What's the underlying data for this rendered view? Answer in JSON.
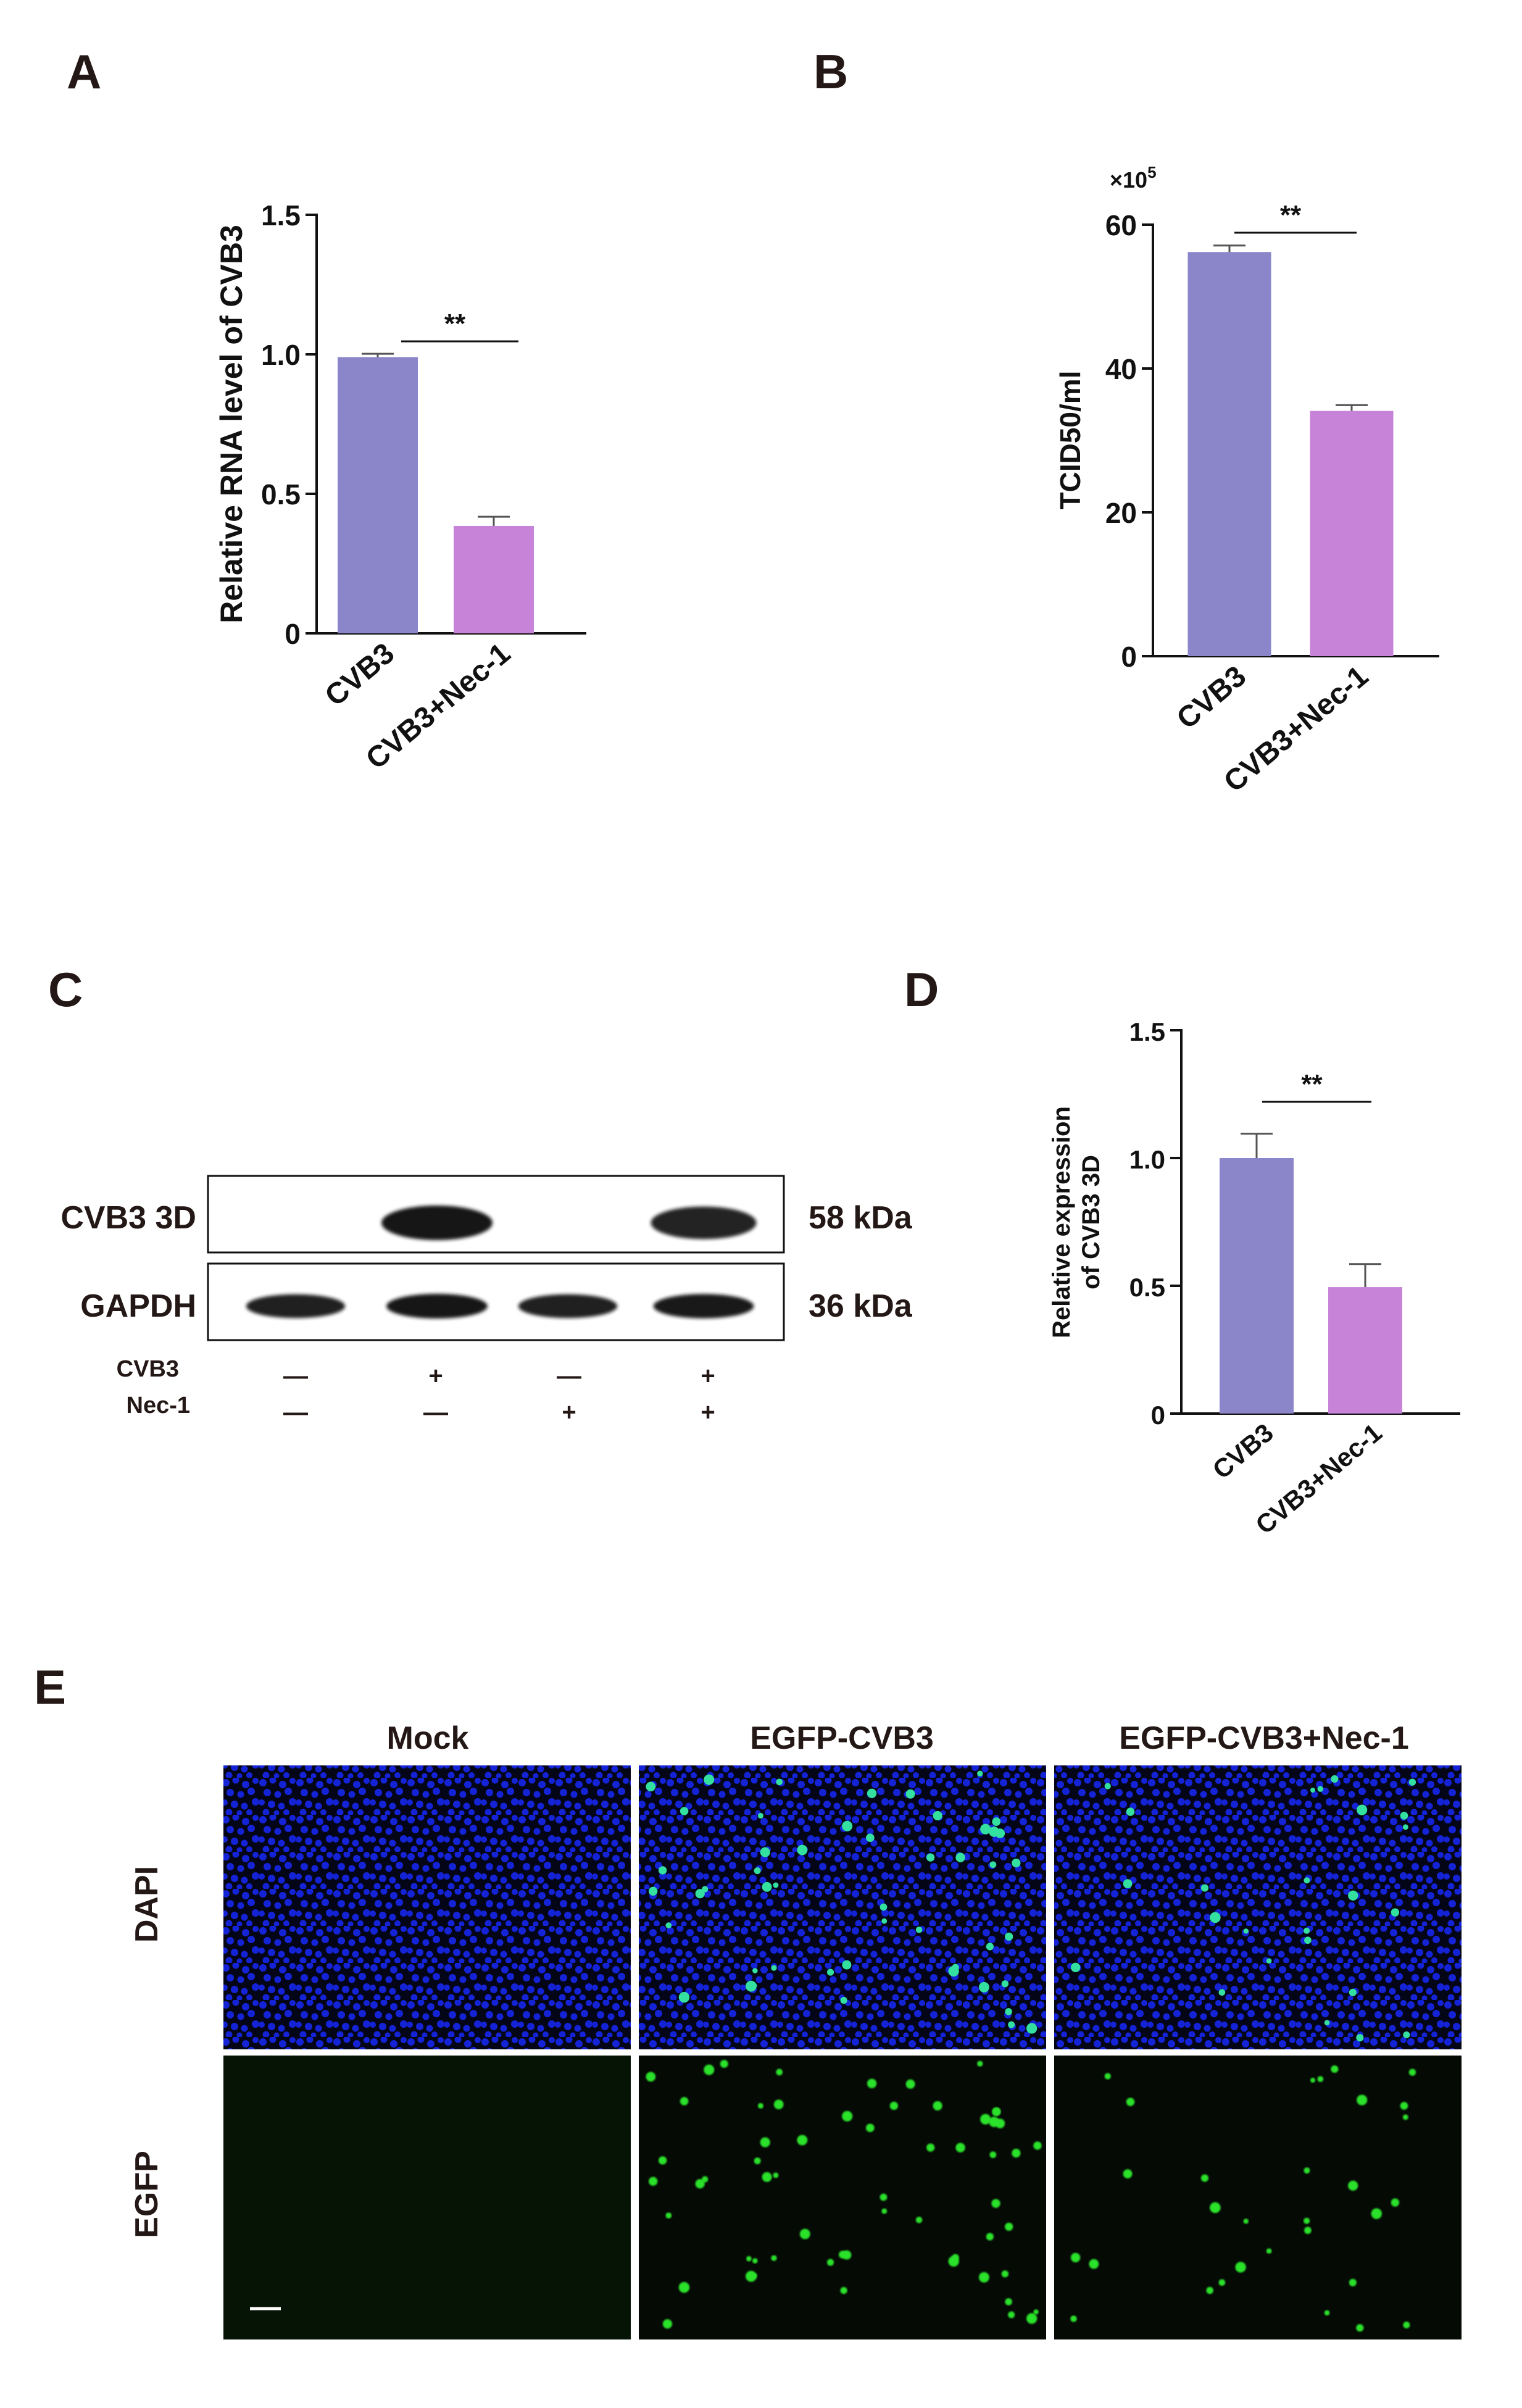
{
  "colors": {
    "bar_primary": "#8a86c9",
    "bar_secondary": "#c783d8",
    "axis": "#111111",
    "nuclei": "#1526e6",
    "egfp": "#2ce22c",
    "blot_band": "#151515"
  },
  "panels": {
    "a": "A",
    "b": "B",
    "c": "C",
    "d": "D",
    "e": "E"
  },
  "chart_data": [
    {
      "id": "A",
      "type": "bar",
      "categories": [
        "CVB3",
        "CVB3+Nec-1"
      ],
      "values": [
        0.99,
        0.385
      ],
      "errors": [
        0.012,
        0.033
      ],
      "ylabel": "Relative RNA level of CVB3",
      "ylim": [
        0,
        1.5
      ],
      "yticks": [
        0,
        0.5,
        1.0,
        1.5
      ],
      "ytick_labels": [
        "0",
        "0.5",
        "1.0",
        "1.5"
      ],
      "significance": "**"
    },
    {
      "id": "B",
      "type": "bar",
      "categories": [
        "CVB3",
        "CVB3+Nec-1"
      ],
      "values": [
        56.2,
        34.1
      ],
      "errors": [
        0.9,
        0.8
      ],
      "ylabel": "TCID50/ml",
      "multiplier_base": "×10",
      "multiplier_exp": "5",
      "ylim": [
        0,
        60
      ],
      "yticks": [
        0,
        20,
        40,
        60
      ],
      "ytick_labels": [
        "0",
        "20",
        "40",
        "60"
      ],
      "significance": "**"
    },
    {
      "id": "D",
      "type": "bar",
      "categories": [
        "CVB3",
        "CVB3+Nec-1"
      ],
      "values": [
        1.0,
        0.495
      ],
      "errors": [
        0.095,
        0.09
      ],
      "ylabel_line1": "Relative expression",
      "ylabel_line2": "of CVB3 3D",
      "ylim": [
        0,
        1.5
      ],
      "yticks": [
        0,
        0.5,
        1.0,
        1.5
      ],
      "ytick_labels": [
        "0",
        "0.5",
        "1.0",
        "1.5"
      ],
      "significance": "**"
    }
  ],
  "blot": {
    "rows": [
      {
        "label": "CVB3 3D",
        "size": "58 kDa",
        "band_intensity": [
          0,
          1,
          0,
          0.8
        ]
      },
      {
        "label": "GAPDH",
        "size": "36 kDa",
        "band_intensity": [
          0.85,
          1,
          0.85,
          0.95
        ]
      }
    ],
    "conditions": [
      {
        "label": "CVB3",
        "marks": [
          "—",
          "+",
          "—",
          "+"
        ]
      },
      {
        "label": "Nec-1",
        "marks": [
          "—",
          "—",
          "+",
          "+"
        ]
      }
    ]
  },
  "micro": {
    "columns": [
      {
        "label": "Mock",
        "egfp_level": 0
      },
      {
        "label": "EGFP-CVB3",
        "egfp_level": 1
      },
      {
        "label": "EGFP-CVB3+Nec-1",
        "egfp_level": 0.5
      }
    ],
    "rows": [
      {
        "label": "DAPI"
      },
      {
        "label": "EGFP"
      }
    ]
  }
}
